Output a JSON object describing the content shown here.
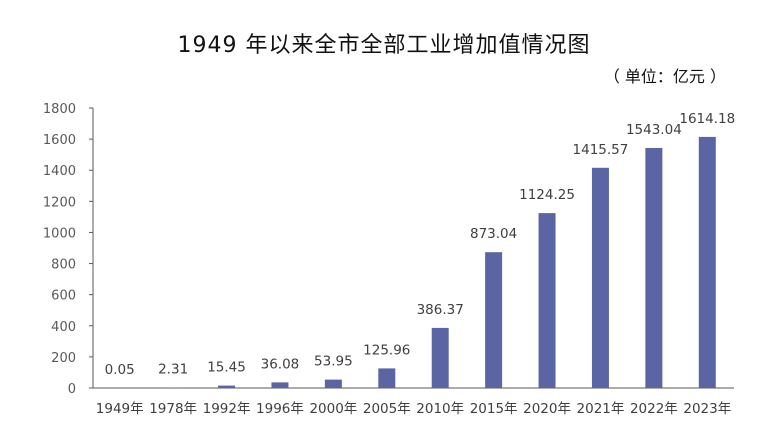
{
  "chart_data": {
    "type": "bar",
    "title": "1949 年以来全市全部工业增加值情况图",
    "subtitle": "（ 单位：亿元 ）",
    "xlabel": "",
    "ylabel": "",
    "categories": [
      "1949年",
      "1978年",
      "1992年",
      "1996年",
      "2000年",
      "2005年",
      "2010年",
      "2015年",
      "2020年",
      "2021年",
      "2022年",
      "2023年"
    ],
    "values": [
      0.05,
      2.31,
      15.45,
      36.08,
      53.95,
      125.96,
      386.37,
      873.04,
      1124.25,
      1415.57,
      1543.04,
      1614.18
    ],
    "value_labels": [
      "0.05",
      "2.31",
      "15.45",
      "36.08",
      "53.95",
      "125.96",
      "386.37",
      "873.04",
      "1124.25",
      "1415.57",
      "1543.04",
      "1614.18"
    ],
    "ylim": [
      0,
      1800
    ],
    "yticks": [
      0,
      200,
      400,
      600,
      800,
      1000,
      1200,
      1400,
      1600,
      1800
    ],
    "grid": false,
    "legend": "none",
    "bar_color": "#5b65a3"
  }
}
